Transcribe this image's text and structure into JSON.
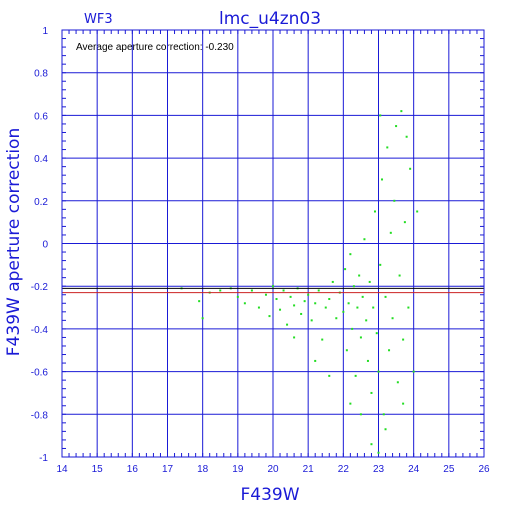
{
  "colors": {
    "axis": "#1a1ad6",
    "grid": "#1a1ad6",
    "points": "#22dd22",
    "mean_line": "#cc2222",
    "ref_line": "#000000",
    "note": "#000000"
  },
  "chart_data": {
    "type": "scatter",
    "title": "lmc_u4zn03",
    "chip_label": "WF3",
    "annotation": "Average aperture correction: -0.230",
    "xlabel": "F439W",
    "ylabel": "F439W aperture correction",
    "xlim": [
      14,
      26
    ],
    "ylim": [
      -1,
      1
    ],
    "xticks": [
      "14",
      "15",
      "16",
      "17",
      "18",
      "19",
      "20",
      "21",
      "22",
      "23",
      "24",
      "25",
      "26"
    ],
    "yticks": [
      "1",
      "0.8",
      "0.6",
      "0.4",
      "0.2",
      "0",
      "-0.2",
      "-0.4",
      "-0.6",
      "-0.8",
      "-1"
    ],
    "grid": true,
    "hlines": [
      {
        "name": "average",
        "y": -0.23
      },
      {
        "name": "reference",
        "y": -0.21
      }
    ],
    "series": [
      {
        "points": [
          [
            17.4,
            -0.21
          ],
          [
            17.9,
            -0.27
          ],
          [
            18.0,
            -0.35
          ],
          [
            18.2,
            -0.23
          ],
          [
            18.5,
            -0.22
          ],
          [
            18.8,
            -0.21
          ],
          [
            19.0,
            -0.25
          ],
          [
            19.2,
            -0.28
          ],
          [
            19.4,
            -0.22
          ],
          [
            19.6,
            -0.3
          ],
          [
            19.8,
            -0.24
          ],
          [
            19.9,
            -0.34
          ],
          [
            20.0,
            -0.2
          ],
          [
            20.1,
            -0.26
          ],
          [
            20.2,
            -0.31
          ],
          [
            20.3,
            -0.22
          ],
          [
            20.4,
            -0.38
          ],
          [
            20.5,
            -0.25
          ],
          [
            20.6,
            -0.29
          ],
          [
            20.7,
            -0.21
          ],
          [
            20.8,
            -0.33
          ],
          [
            20.9,
            -0.27
          ],
          [
            21.0,
            -0.24
          ],
          [
            21.1,
            -0.36
          ],
          [
            21.2,
            -0.28
          ],
          [
            21.3,
            -0.22
          ],
          [
            21.4,
            -0.45
          ],
          [
            21.5,
            -0.3
          ],
          [
            21.6,
            -0.26
          ],
          [
            21.7,
            -0.18
          ],
          [
            21.8,
            -0.35
          ],
          [
            21.9,
            -0.23
          ],
          [
            22.0,
            -0.32
          ],
          [
            22.05,
            -0.12
          ],
          [
            22.1,
            -0.5
          ],
          [
            22.15,
            -0.28
          ],
          [
            22.2,
            -0.05
          ],
          [
            22.25,
            -0.4
          ],
          [
            22.3,
            -0.2
          ],
          [
            22.35,
            -0.62
          ],
          [
            22.4,
            -0.3
          ],
          [
            22.45,
            -0.15
          ],
          [
            22.5,
            -0.44
          ],
          [
            22.55,
            -0.25
          ],
          [
            22.6,
            0.02
          ],
          [
            22.65,
            -0.36
          ],
          [
            22.7,
            -0.55
          ],
          [
            22.75,
            -0.18
          ],
          [
            22.8,
            -0.7
          ],
          [
            22.85,
            -0.3
          ],
          [
            22.9,
            0.15
          ],
          [
            22.95,
            -0.42
          ],
          [
            23.0,
            -0.6
          ],
          [
            23.05,
            -0.1
          ],
          [
            23.1,
            0.3
          ],
          [
            23.15,
            -0.8
          ],
          [
            23.2,
            -0.25
          ],
          [
            23.25,
            0.45
          ],
          [
            23.3,
            -0.5
          ],
          [
            23.35,
            0.05
          ],
          [
            23.4,
            -0.35
          ],
          [
            23.45,
            0.2
          ],
          [
            23.5,
            0.55
          ],
          [
            23.55,
            -0.65
          ],
          [
            23.6,
            -0.15
          ],
          [
            23.65,
            0.62
          ],
          [
            23.7,
            -0.45
          ],
          [
            23.75,
            0.1
          ],
          [
            23.8,
            0.5
          ],
          [
            23.85,
            -0.3
          ],
          [
            23.9,
            0.35
          ],
          [
            24.0,
            -0.6
          ],
          [
            24.1,
            0.15
          ],
          [
            22.8,
            -0.94
          ],
          [
            23.0,
            -0.98
          ],
          [
            23.2,
            -0.87
          ],
          [
            23.05,
            0.6
          ],
          [
            22.2,
            -0.75
          ],
          [
            21.6,
            -0.62
          ],
          [
            20.6,
            -0.44
          ],
          [
            21.2,
            -0.55
          ],
          [
            22.5,
            -0.8
          ],
          [
            23.7,
            -0.75
          ]
        ]
      }
    ]
  }
}
